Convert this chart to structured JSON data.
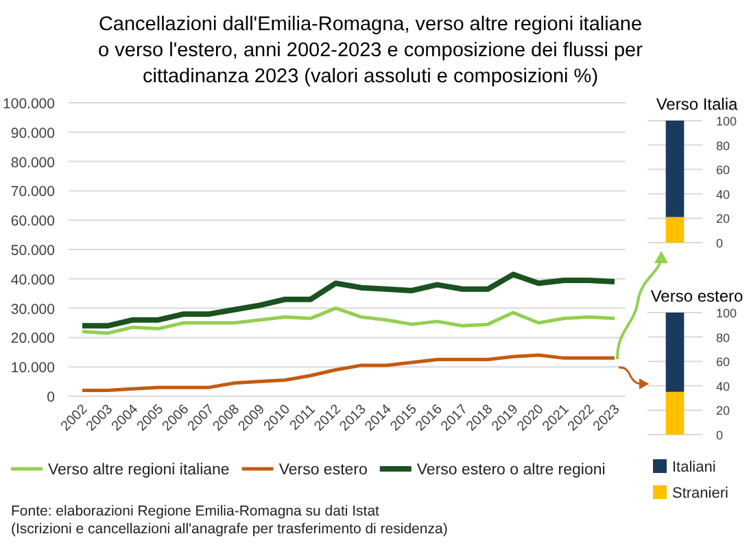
{
  "chart_data": [
    {
      "type": "line",
      "title": "Cancellazioni dall'Emilia-Romagna, verso altre regioni italiane o verso l'estero, anni 2002-2023 e composizione dei flussi per cittadinanza 2023 (valori assoluti e composizioni %)",
      "categories": [
        "2002",
        "2003",
        "2004",
        "2005",
        "2006",
        "2007",
        "2008",
        "2009",
        "2010",
        "2011",
        "2012",
        "2013",
        "2014",
        "2015",
        "2016",
        "2017",
        "2018",
        "2019",
        "2020",
        "2021",
        "2022",
        "2023"
      ],
      "series": [
        {
          "name": "Verso altre regioni italiane",
          "color": "#92d050",
          "values": [
            22000,
            21500,
            23500,
            23000,
            25000,
            25000,
            25000,
            26000,
            27000,
            26500,
            30000,
            27000,
            26000,
            24500,
            25500,
            24000,
            24500,
            28500,
            25000,
            26500,
            27000,
            26500
          ]
        },
        {
          "name": "Verso estero",
          "color": "#c55a11",
          "values": [
            2000,
            2000,
            2500,
            3000,
            3000,
            3000,
            4500,
            5000,
            5500,
            7000,
            9000,
            10500,
            10500,
            11500,
            12500,
            12500,
            12500,
            13500,
            14000,
            13000,
            13000,
            13000
          ]
        },
        {
          "name": "Verso estero o altre regioni",
          "color": "#1a5220",
          "values": [
            24000,
            24000,
            26000,
            26000,
            28000,
            28000,
            29500,
            31000,
            33000,
            33000,
            38500,
            37000,
            36500,
            36000,
            38000,
            36500,
            36500,
            41500,
            38500,
            39500,
            39500,
            39000
          ]
        }
      ],
      "ylim": [
        0,
        100000
      ],
      "yticks": [
        {
          "value": 0,
          "label": "0"
        },
        {
          "value": 10000,
          "label": "10.000"
        },
        {
          "value": 20000,
          "label": "20.000"
        },
        {
          "value": 30000,
          "label": "30.000"
        },
        {
          "value": 40000,
          "label": "40.000"
        },
        {
          "value": 50000,
          "label": "50.000"
        },
        {
          "value": 60000,
          "label": "60.000"
        },
        {
          "value": 70000,
          "label": "70.000"
        },
        {
          "value": 80000,
          "label": "80.000"
        },
        {
          "value": 90000,
          "label": "90.000"
        },
        {
          "value": 100000,
          "label": "100.000"
        }
      ],
      "grid": "y",
      "legend": "bottom",
      "marker": "none",
      "line_style": "solid",
      "annotations": [
        "Fonte: elaborazioni Regione Emilia-Romagna su dati Istat",
        "(Iscrizioni e cancellazioni all'anagrafe per trasferimento di residenza)"
      ]
    },
    {
      "type": "bar",
      "title": "Verso Italia",
      "categories": [
        null
      ],
      "stacked": true,
      "series": [
        {
          "color": "#ffc000",
          "values": [
            21
          ]
        },
        {
          "color": "#1a3a5e",
          "values": [
            79
          ]
        }
      ],
      "ylim": [
        0,
        100
      ],
      "yticks": [
        0,
        20,
        40,
        60,
        80,
        100
      ],
      "grid": "y",
      "legend": false
    },
    {
      "type": "bar",
      "title": "Verso estero",
      "categories": [
        null
      ],
      "stacked": true,
      "series": [
        {
          "name": "Stranieri",
          "color": "#ffc000",
          "values": [
            35
          ]
        },
        {
          "name": "Italiani",
          "color": "#1a3a5e",
          "values": [
            65
          ]
        }
      ],
      "ylim": [
        0,
        100
      ],
      "yticks": [
        0,
        20,
        40,
        60,
        80,
        100
      ],
      "grid": "y",
      "legend": "bottom"
    }
  ]
}
